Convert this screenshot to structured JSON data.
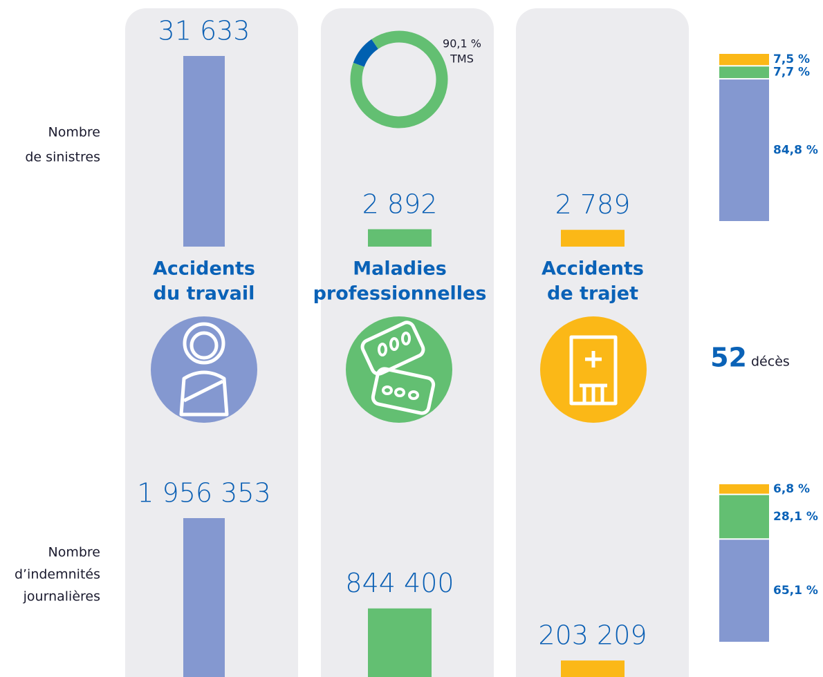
{
  "row_labels": [
    [
      "Nombre",
      "de sinistres"
    ],
    [
      "Nombre",
      "d’indemnités",
      "journalières"
    ]
  ],
  "columns": [
    {
      "title": [
        "Accidents",
        "du travail"
      ],
      "color": "#8498d0",
      "sinistres": 31633,
      "sinistres_label": "31 633",
      "indemnites": 1956353,
      "indemnites_label": "1 956 353"
    },
    {
      "title": [
        "Maladies",
        "professionnelles"
      ],
      "color": "#63bf72",
      "sinistres": 2892,
      "sinistres_label": "2 892",
      "indemnites": 844400,
      "indemnites_label": "844 400"
    },
    {
      "title": [
        "Accidents",
        "de trajet"
      ],
      "color": "#fbb817",
      "sinistres": 2789,
      "sinistres_label": "2 789",
      "indemnites": 203209,
      "indemnites_label": "203 209"
    }
  ],
  "donut": {
    "value": 90.1,
    "label": "90,1 %",
    "caption": "TMS",
    "color": "#63bf72",
    "rest_color": "#0060b0"
  },
  "shares_sinistres": {
    "values": [
      84.8,
      7.7,
      7.5
    ],
    "value_labels": [
      "84,8 %",
      "7,7 %",
      "7,5 %"
    ]
  },
  "shares_indemnites": {
    "values": [
      65.1,
      28.1,
      6.8
    ],
    "value_labels": [
      "65,1 %",
      "28,1 %",
      "6,8 %"
    ]
  },
  "deces": {
    "value": 52,
    "text": "décès"
  }
}
